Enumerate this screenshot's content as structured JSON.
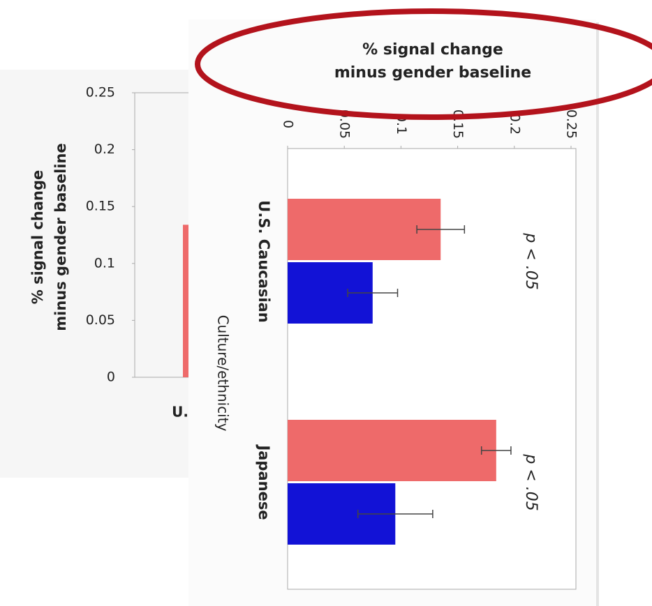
{
  "chart_data": [
    {
      "type": "bar",
      "y_label": [
        "% signal change",
        "minus gender baseline"
      ],
      "categories": [
        "U."
      ],
      "series": [
        {
          "color": "#ee6a6a",
          "values": [
            0.134
          ]
        }
      ],
      "ylim": [
        0,
        0.25
      ],
      "yticks": [
        0,
        0.05,
        0.1,
        0.15,
        0.2,
        0.25
      ]
    },
    {
      "type": "hbar",
      "x_label": [
        "% signal change",
        "minus gender baseline"
      ],
      "y_label": "Culture/ethnicity",
      "categories": [
        "U.S. Caucasian",
        "Japanese"
      ],
      "series": [
        {
          "color": "#ee6a6a",
          "values": [
            0.135,
            0.184
          ],
          "errors": [
            0.021,
            0.013
          ]
        },
        {
          "color": "#1212d6",
          "values": [
            0.075,
            0.095
          ],
          "errors": [
            0.022,
            0.033
          ]
        }
      ],
      "annotations": [
        "p < .05",
        "p < .05"
      ],
      "xlim": [
        0,
        0.25
      ],
      "xticks": [
        0,
        0.05,
        0.1,
        0.15,
        0.2,
        0.25
      ]
    }
  ]
}
